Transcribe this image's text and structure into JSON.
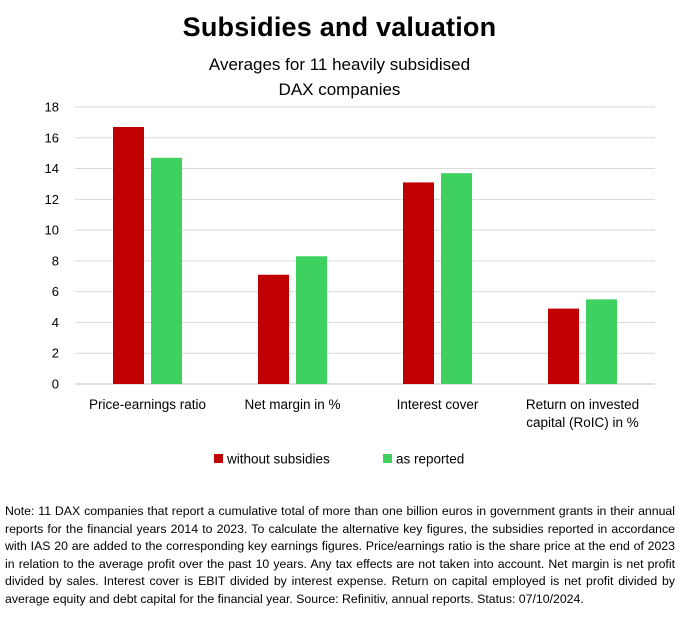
{
  "chart_data": {
    "type": "bar",
    "title": "Subsidies and valuation",
    "subtitle_lines": [
      "Averages for 11 heavily subsidised",
      "DAX companies"
    ],
    "categories": [
      [
        "Price-earnings ratio"
      ],
      [
        "Net margin in %"
      ],
      [
        "Interest cover"
      ],
      [
        "Return on invested",
        "capital (RoIC) in %"
      ]
    ],
    "series": [
      {
        "name": "without subsidies",
        "color": "#c00000",
        "values": [
          16.7,
          7.1,
          13.1,
          4.9
        ]
      },
      {
        "name": "as reported",
        "color": "#3fd160",
        "values": [
          14.7,
          8.3,
          13.7,
          5.5
        ]
      }
    ],
    "yticks": [
      0,
      2,
      4,
      6,
      8,
      10,
      12,
      14,
      16,
      18
    ],
    "ylim": [
      0,
      18
    ],
    "grid": true,
    "legend_position": "bottom"
  },
  "note": "Note: 11 DAX companies that report a cumulative total of more than one billion euros in government grants in their annual reports for the financial years 2014 to 2023. To calculate the alternative key figures, the subsidies reported in accordance with IAS 20 are added to the corresponding key earnings figures. Price/earnings ratio is the share price at the end of 2023 in relation to the average profit over the past 10 years. Any tax effects are not taken into account. Net margin is net profit divided by sales. Interest cover is EBIT divided by interest expense. Return on capital employed is net profit divided by average equity and debt capital for the financial year. Source: Refinitiv, annual reports. Status: 07/10/2024."
}
